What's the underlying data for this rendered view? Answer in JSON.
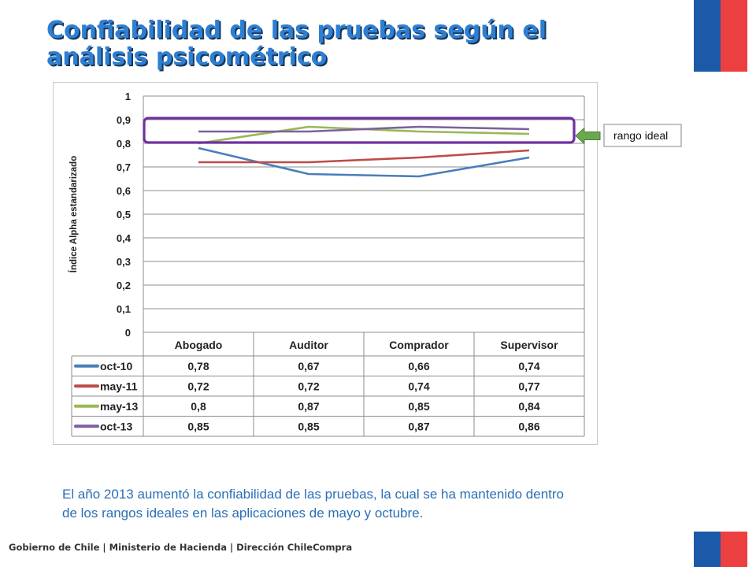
{
  "slide": {
    "title": "Confiabilidad de las pruebas según el análisis psicométrico",
    "note": "El año 2013 aumentó la confiabilidad de las pruebas, la cual se ha mantenido dentro de los rangos ideales en las aplicaciones de mayo y octubre.",
    "footer": "Gobierno de Chile | Ministerio de Hacienda | Dirección ChileCompra"
  },
  "colors": {
    "title": "#2e7fd2",
    "flag_blue": "#1b5aa8",
    "flag_red": "#ec4040",
    "highlight_box": "#7030a0",
    "arrow": "#6aa84f"
  },
  "chart_data": {
    "type": "line",
    "categories": [
      "Abogado",
      "Auditor",
      "Comprador",
      "Supervisor"
    ],
    "series": [
      {
        "name": "oct-10",
        "values": [
          0.78,
          0.67,
          0.66,
          0.74
        ],
        "color": "#4a7ebb"
      },
      {
        "name": "may-11",
        "values": [
          0.72,
          0.72,
          0.74,
          0.77
        ],
        "color": "#be4b48"
      },
      {
        "name": "may-13",
        "values": [
          0.8,
          0.87,
          0.85,
          0.84
        ],
        "color": "#98b954"
      },
      {
        "name": "oct-13",
        "values": [
          0.85,
          0.85,
          0.87,
          0.86
        ],
        "color": "#7d60a0"
      }
    ],
    "table_values": [
      [
        "0,78",
        "0,67",
        "0,66",
        "0,74"
      ],
      [
        "0,72",
        "0,72",
        "0,74",
        "0,77"
      ],
      [
        "0,8",
        "0,87",
        "0,85",
        "0,84"
      ],
      [
        "0,85",
        "0,85",
        "0,87",
        "0,86"
      ]
    ],
    "ylabel": "Índice Alpha estandarizado",
    "ylim": [
      0,
      1
    ],
    "yticks": [
      0,
      0.1,
      0.2,
      0.3,
      0.4,
      0.5,
      0.6,
      0.7,
      0.8,
      0.9,
      1
    ],
    "ytick_labels": [
      "0",
      "0,1",
      "0,2",
      "0,3",
      "0,4",
      "0,5",
      "0,6",
      "0,7",
      "0,8",
      "0,9",
      "1"
    ],
    "grid": true,
    "legend": "data-table",
    "annotation": {
      "text": "rango ideal",
      "range": [
        0.8,
        0.9
      ]
    }
  }
}
